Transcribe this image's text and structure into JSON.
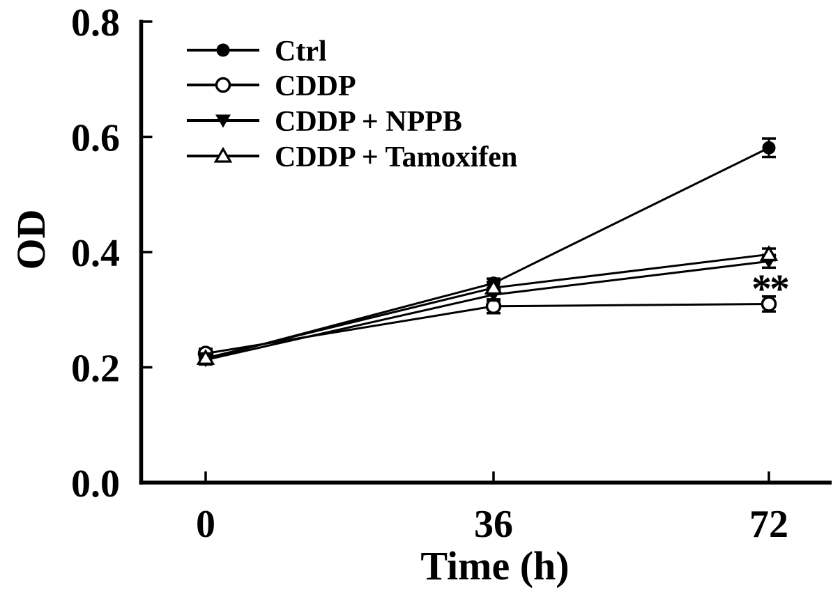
{
  "figure": {
    "background": "#ffffff",
    "ink": "#000000"
  },
  "chart_data": {
    "type": "line",
    "title": "",
    "xlabel": "Time (h)",
    "ylabel": "OD",
    "x": [
      0,
      36,
      72
    ],
    "xtick_labels": [
      "0",
      "36",
      "72"
    ],
    "yticks": [
      0.0,
      0.2,
      0.4,
      0.6,
      0.8
    ],
    "ytick_labels": [
      "0.0",
      "0.2",
      "0.4",
      "0.6",
      "0.8"
    ],
    "ylim": [
      0.0,
      0.8
    ],
    "xlim": [
      -8,
      80
    ],
    "grid": false,
    "legend": {
      "position": "upper-left-inside"
    },
    "series": [
      {
        "name": "Ctrl",
        "marker": "circle-filled",
        "values": [
          0.214,
          0.346,
          0.581
        ],
        "errors": [
          0.008,
          0.008,
          0.016
        ]
      },
      {
        "name": "CDDP",
        "marker": "circle-open",
        "values": [
          0.224,
          0.306,
          0.31
        ],
        "errors": [
          0.008,
          0.012,
          0.013
        ]
      },
      {
        "name": "CDDP + NPPB",
        "marker": "triangle-down-filled",
        "values": [
          0.213,
          0.326,
          0.384
        ],
        "errors": [
          0.008,
          0.01,
          0.011
        ]
      },
      {
        "name": "CDDP + Tamoxifen",
        "marker": "triangle-up-open",
        "values": [
          0.216,
          0.338,
          0.396
        ],
        "errors": [
          0.008,
          0.01,
          0.01
        ]
      }
    ],
    "annotations": [
      {
        "text": "**",
        "x": 72,
        "y": 0.342,
        "applies_to": "CDDP",
        "meaning": "statistical significance vs Ctrl"
      }
    ]
  }
}
